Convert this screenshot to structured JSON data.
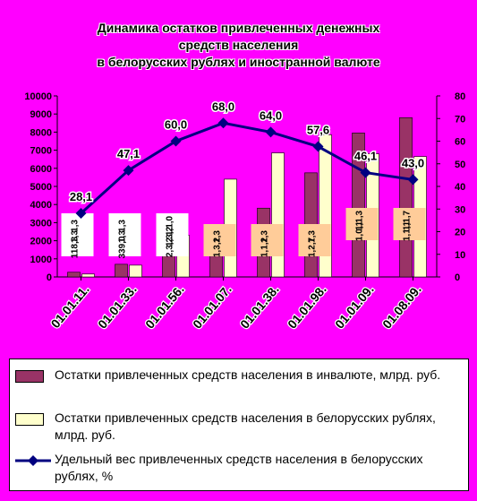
{
  "chart_data": {
    "type": "bar+line",
    "title": [
      "Динамика остатков привлеченных денежных",
      "средств населения",
      "в белорусских рублях и иностранной валюте"
    ],
    "categories": [
      "01.01.11.",
      "01.01.33.",
      "01.01.56.",
      "01.01.07.",
      "01.01.38.",
      "01.01.98.",
      "01.01.09.",
      "01.08.09."
    ],
    "y_left": {
      "min": 0,
      "max": 10000,
      "step": 1000,
      "ticks": [
        "0",
        "1000",
        "2000",
        "3000",
        "4000",
        "5000",
        "6000",
        "7000",
        "8000",
        "9000",
        "10000"
      ]
    },
    "y_right": {
      "min": 0,
      "max": 80,
      "step": 10,
      "ticks": [
        "0",
        "10",
        "20",
        "30",
        "40",
        "50",
        "60",
        "70",
        "80"
      ]
    },
    "series": [
      {
        "name": "Остатки привлеченных средств населения в инвалюте, млрд. руб.",
        "kind": "bar",
        "color": "#993366",
        "values": [
          260,
          700,
          1550,
          2300,
          3800,
          5750,
          7950,
          8800
        ]
      },
      {
        "name": "Остатки привлеченных средств населения в белорусских рублях, млрд. руб.",
        "kind": "bar",
        "color": "#ffffcc",
        "values": [
          160,
          650,
          2300,
          5400,
          6850,
          7850,
          6800,
          6650
        ]
      },
      {
        "name": "Удельный вес привлеченных средств населения в белорусских рублях, %",
        "kind": "line",
        "color": "#000080",
        "values": [
          28.1,
          47.1,
          60.0,
          68.0,
          64.0,
          57.6,
          46.1,
          43.0
        ],
        "labels": [
          "28,1",
          "47,1",
          "60,0",
          "68,0",
          "64,0",
          "57,6",
          "46,1",
          "43,0"
        ]
      }
    ],
    "bar_labels": [
      {
        "cat": 0,
        "lines": [
          "1,3",
          "1,3",
          "118,3"
        ]
      },
      {
        "cat": 1,
        "lines": [
          "1,3",
          "1,3",
          "339,0"
        ]
      },
      {
        "cat": 2,
        "lines": [
          "1,1,0",
          "1,3,2",
          "2,3,2"
        ]
      },
      {
        "cat": 3,
        "lines": [
          "1,3",
          "1,3,2"
        ]
      },
      {
        "cat": 4,
        "lines": [
          "1,3",
          "1,1,2"
        ]
      },
      {
        "cat": 5,
        "lines": [
          "1,3",
          "1,2,7"
        ]
      },
      {
        "cat": 6,
        "lines": [
          "1,1,3",
          "1,0,1"
        ]
      },
      {
        "cat": 7,
        "lines": [
          "1,1,7",
          "1,1,1"
        ]
      }
    ],
    "grid": false,
    "legend_position": "bottom"
  },
  "colors": {
    "background": "#ff00ff",
    "bar_fx": "#993366",
    "bar_byr": "#ffffcc",
    "line": "#000080",
    "label_box_white": "#ffffff",
    "label_box_peach": "#ffcc99"
  }
}
